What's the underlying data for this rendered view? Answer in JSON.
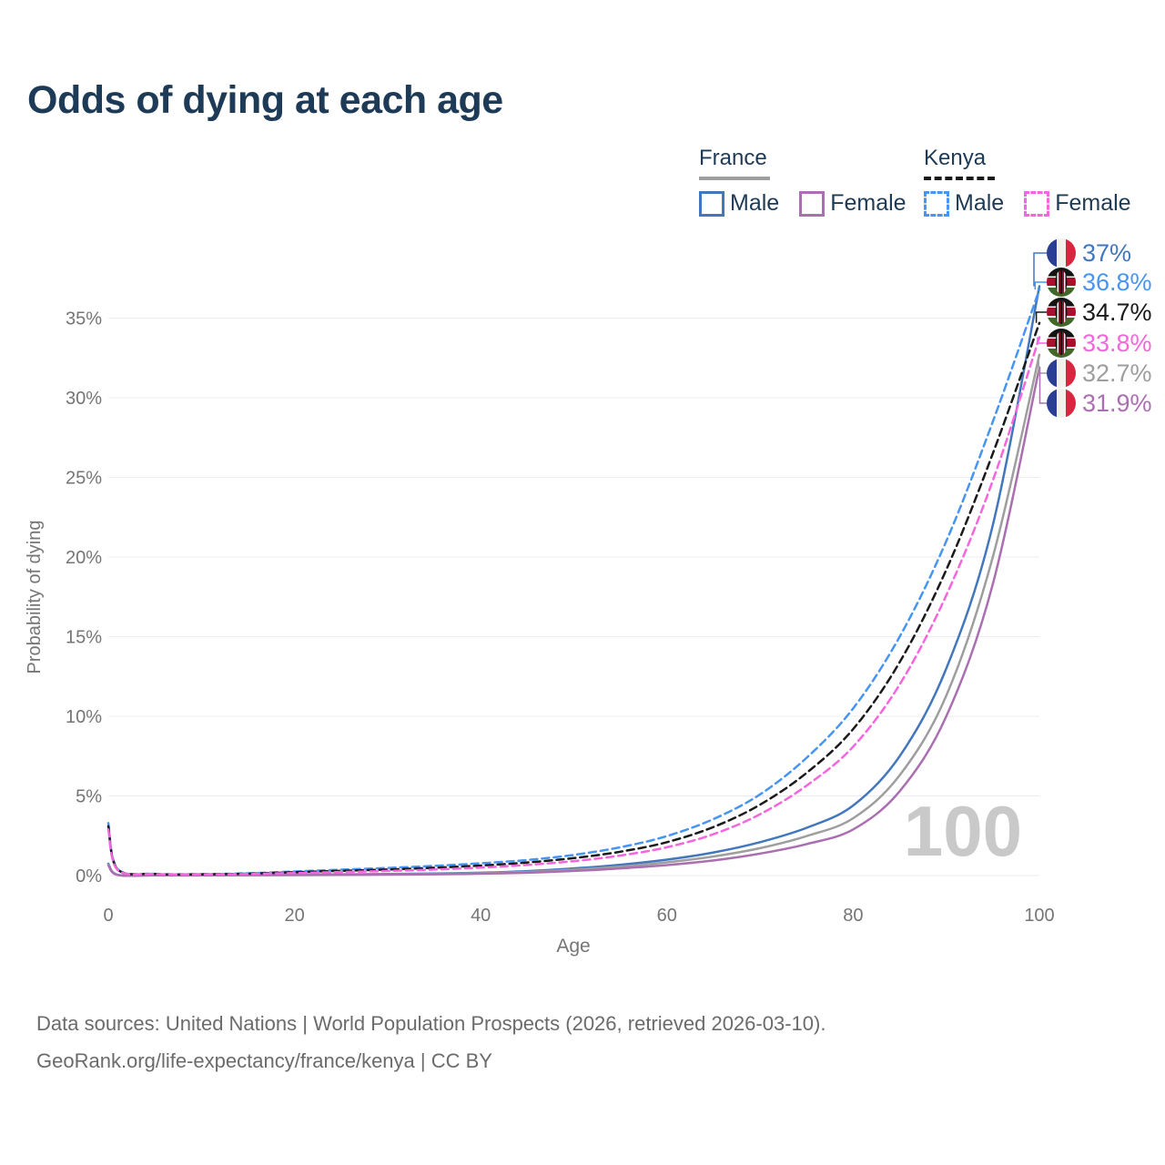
{
  "title": "Odds of dying at each age",
  "legend": {
    "groups": [
      {
        "country": "France",
        "style": "solid",
        "underline_color": "#9e9e9e",
        "items": [
          {
            "label": "Male",
            "color": "#4277bd"
          },
          {
            "label": "Female",
            "color": "#aa6fb0"
          }
        ]
      },
      {
        "country": "Kenya",
        "style": "dashed",
        "underline_color": "#1a1a1a",
        "items": [
          {
            "label": "Male",
            "color": "#4795f2"
          },
          {
            "label": "Female",
            "color": "#f565dd"
          }
        ]
      }
    ]
  },
  "chart_data": {
    "type": "line",
    "title": "Odds of dying at each age",
    "xlabel": "Age",
    "ylabel": "Probability of dying",
    "xlim": [
      0,
      100
    ],
    "ylim": [
      0,
      37.5
    ],
    "xticks": [
      0,
      20,
      40,
      60,
      80,
      100
    ],
    "yticks": [
      "0%",
      "5%",
      "10%",
      "15%",
      "20%",
      "25%",
      "30%",
      "35%"
    ],
    "grid": "horizontal",
    "legend_position": "top-right",
    "watermark": "100",
    "x": [
      0,
      1,
      5,
      10,
      15,
      20,
      25,
      30,
      35,
      40,
      45,
      50,
      55,
      60,
      65,
      70,
      75,
      80,
      85,
      90,
      95,
      100
    ],
    "series": [
      {
        "name": "France Male",
        "country": "France",
        "sex": "Male",
        "color": "#4277bd",
        "dash": "solid",
        "end_label": "37%",
        "end_value": 37.0,
        "values": [
          0.75,
          0.05,
          0.02,
          0.02,
          0.04,
          0.07,
          0.08,
          0.1,
          0.13,
          0.18,
          0.28,
          0.45,
          0.68,
          1.0,
          1.45,
          2.1,
          3.0,
          4.4,
          7.5,
          13.0,
          22.0,
          37.0
        ]
      },
      {
        "name": "Kenya Male",
        "country": "Kenya",
        "sex": "Male",
        "color": "#4795f2",
        "dash": "dashed",
        "end_label": "36.8%",
        "end_value": 36.8,
        "values": [
          3.3,
          0.42,
          0.11,
          0.09,
          0.14,
          0.26,
          0.37,
          0.48,
          0.61,
          0.77,
          0.98,
          1.3,
          1.78,
          2.48,
          3.55,
          5.1,
          7.4,
          10.5,
          15.0,
          21.0,
          28.5,
          36.8
        ]
      },
      {
        "name": "Kenya Overall",
        "country": "Kenya",
        "sex": "Overall",
        "color": "#1a1a1a",
        "dash": "dashed",
        "end_label": "34.7%",
        "end_value": 34.7,
        "values": [
          3.1,
          0.39,
          0.1,
          0.08,
          0.12,
          0.21,
          0.3,
          0.38,
          0.49,
          0.63,
          0.82,
          1.1,
          1.5,
          2.1,
          3.05,
          4.45,
          6.45,
          9.2,
          13.4,
          19.2,
          26.5,
          34.7
        ]
      },
      {
        "name": "Kenya Female",
        "country": "Kenya",
        "sex": "Female",
        "color": "#f565dd",
        "dash": "dashed",
        "end_label": "33.8%",
        "end_value": 33.8,
        "values": [
          2.9,
          0.36,
          0.09,
          0.07,
          0.1,
          0.16,
          0.22,
          0.29,
          0.38,
          0.5,
          0.67,
          0.91,
          1.26,
          1.78,
          2.6,
          3.85,
          5.65,
          8.1,
          12.0,
          17.6,
          24.8,
          33.8
        ]
      },
      {
        "name": "France Overall",
        "country": "France",
        "sex": "Overall",
        "color": "#9e9e9e",
        "dash": "solid",
        "end_label": "32.7%",
        "end_value": 32.7,
        "values": [
          0.7,
          0.04,
          0.02,
          0.02,
          0.03,
          0.05,
          0.06,
          0.08,
          0.1,
          0.15,
          0.23,
          0.37,
          0.56,
          0.83,
          1.2,
          1.72,
          2.48,
          3.6,
          6.3,
          11.3,
          20.0,
          32.7
        ]
      },
      {
        "name": "France Female",
        "country": "France",
        "sex": "Female",
        "color": "#aa6fb0",
        "dash": "solid",
        "end_label": "31.9%",
        "end_value": 31.9,
        "values": [
          0.65,
          0.04,
          0.01,
          0.01,
          0.02,
          0.03,
          0.04,
          0.06,
          0.08,
          0.12,
          0.18,
          0.29,
          0.45,
          0.66,
          0.95,
          1.38,
          1.98,
          2.9,
          5.3,
          10.0,
          18.3,
          31.9
        ]
      }
    ]
  },
  "footer": {
    "line1": "Data sources: United Nations | World Population Prospects (2026, retrieved 2026-03-10).",
    "line2": "GeoRank.org/life-expectancy/france/kenya | CC BY"
  }
}
